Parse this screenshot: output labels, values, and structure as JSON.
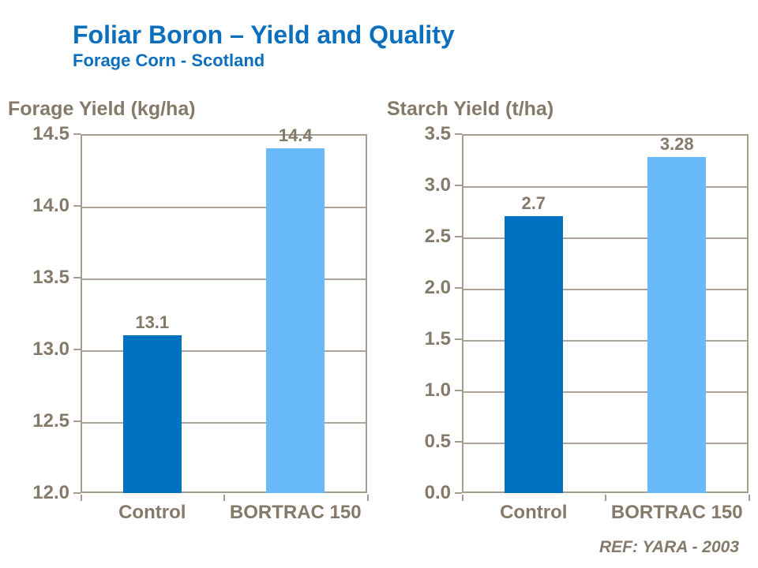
{
  "header": {
    "title": "Foliar Boron – Yield and Quality",
    "subtitle": "Forage Corn - Scotland"
  },
  "footer": {
    "ref": "REF: YARA - 2003"
  },
  "colors": {
    "title_blue": "#0B6FBE",
    "text_brown": "#85796A",
    "axis_line": "#A79D8F",
    "gridline": "#ACA396",
    "bar_control": "#0071BE",
    "bar_bortrac": "#68BAF8"
  },
  "chart_data": [
    {
      "type": "bar",
      "title": "Forage Yield (kg/ha)",
      "categories": [
        "Control",
        "BORTRAC 150"
      ],
      "values": [
        13.1,
        14.4
      ],
      "data_labels": [
        "13.1",
        "14.4"
      ],
      "bar_colors": [
        "#0071BE",
        "#68BAF8"
      ],
      "ylim": [
        12.0,
        14.5
      ],
      "yticks": [
        "14.5",
        "14.0",
        "13.5",
        "13.0",
        "12.5",
        "12.0"
      ],
      "grid": true,
      "legend": "none",
      "xlabel": "",
      "ylabel": ""
    },
    {
      "type": "bar",
      "title": "Starch Yield (t/ha)",
      "categories": [
        "Control",
        "BORTRAC 150"
      ],
      "values": [
        2.7,
        3.28
      ],
      "data_labels": [
        "2.7",
        "3.28"
      ],
      "bar_colors": [
        "#0071BE",
        "#68BAF8"
      ],
      "ylim": [
        0.0,
        3.5
      ],
      "yticks": [
        "3.5",
        "3.0",
        "2.5",
        "2.0",
        "1.5",
        "1.0",
        "0.5",
        "0.0"
      ],
      "grid": true,
      "legend": "none",
      "xlabel": "",
      "ylabel": ""
    }
  ]
}
